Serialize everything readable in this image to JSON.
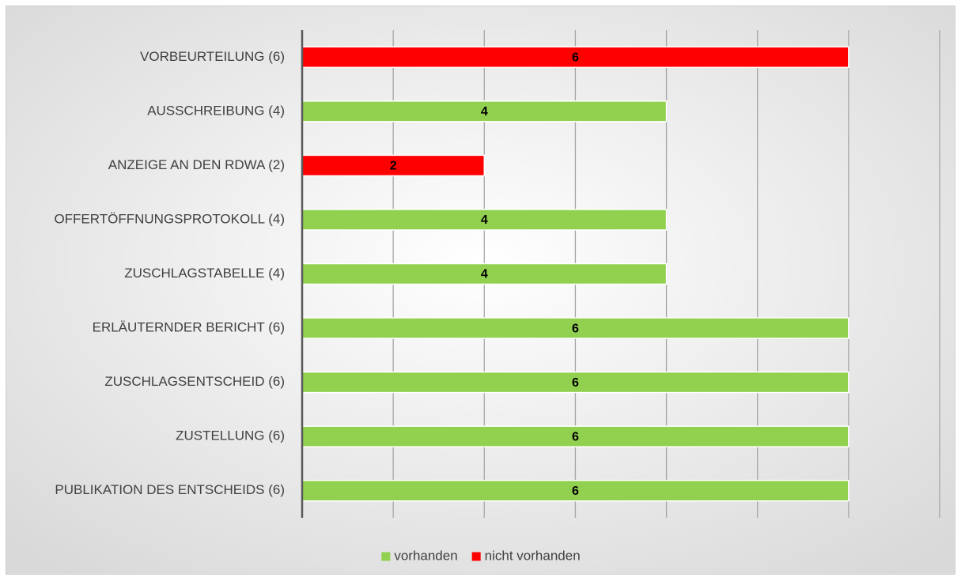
{
  "chart_data": {
    "type": "stacked_barh",
    "categories": [
      "VORBEURTEILUNG (6)",
      "AUSSCHREIBUNG (4)",
      "ANZEIGE AN DEN RDWA (2)",
      "OFFERTÖFFNUNGSPROTOKOLL (4)",
      "ZUSCHLAGSTABELLE (4)",
      "ERLÄUTERNDER BERICHT (6)",
      "ZUSCHLAGSENTSCHEID (6)",
      "ZUSTELLUNG (6)",
      "PUBLIKATION DES ENTSCHEIDS (6)"
    ],
    "series": [
      {
        "name": "vorhanden",
        "color": "#92d050",
        "values": [
          null,
          4,
          null,
          4,
          4,
          6,
          6,
          6,
          6
        ]
      },
      {
        "name": "nicht vorhanden",
        "color": "#ff0000",
        "values": [
          6,
          null,
          2,
          null,
          null,
          null,
          null,
          null,
          null
        ]
      }
    ],
    "xlim": [
      0,
      7
    ],
    "xticks": [
      0,
      1,
      2,
      3,
      4,
      5,
      6,
      7
    ],
    "grid": true,
    "legend": "bottom"
  }
}
